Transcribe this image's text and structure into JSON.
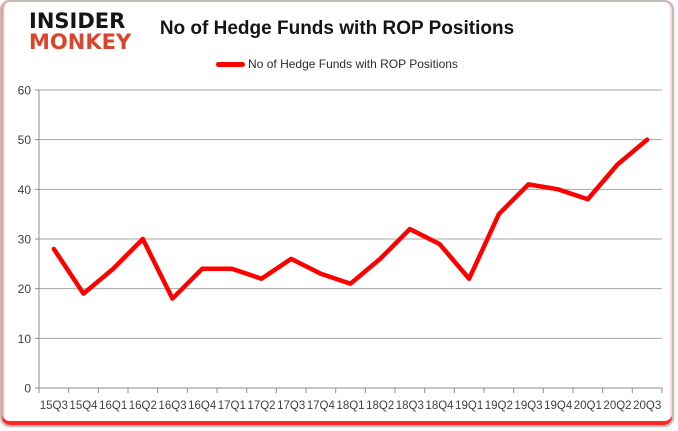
{
  "logo": {
    "line1": "INSIDER",
    "line2": "MONKEY",
    "line1_color": "#151515",
    "line2_color": "#d9472b"
  },
  "header": {
    "title": "No of Hedge Funds with ROP Positions"
  },
  "legend": {
    "label": "No of Hedge Funds with ROP Positions",
    "swatch_color": "#ff0000"
  },
  "chart_data": {
    "type": "line",
    "title": "No of Hedge Funds with ROP Positions",
    "categories": [
      "15Q3",
      "15Q4",
      "16Q1",
      "16Q2",
      "16Q3",
      "16Q4",
      "17Q1",
      "17Q2",
      "17Q3",
      "17Q4",
      "18Q1",
      "18Q2",
      "18Q3",
      "18Q4",
      "19Q1",
      "19Q2",
      "19Q3",
      "19Q4",
      "20Q1",
      "20Q2",
      "20Q3"
    ],
    "series": [
      {
        "name": "No of Hedge Funds with ROP Positions",
        "color": "#ff0000",
        "values": [
          28,
          19,
          24,
          30,
          18,
          24,
          24,
          22,
          26,
          23,
          21,
          26,
          32,
          29,
          22,
          35,
          41,
          40,
          38,
          45,
          50
        ]
      }
    ],
    "xlabel": "",
    "ylabel": "",
    "ylim": [
      0,
      60
    ],
    "yticks": [
      0,
      10,
      20,
      30,
      40,
      50,
      60
    ],
    "grid": true,
    "legend_position": "top-center",
    "gridline_color": "#a6a6a6",
    "axis_line_color": "#8c8c8c",
    "axis_text_color": "#3f3f3f",
    "line_width": 4.5
  }
}
